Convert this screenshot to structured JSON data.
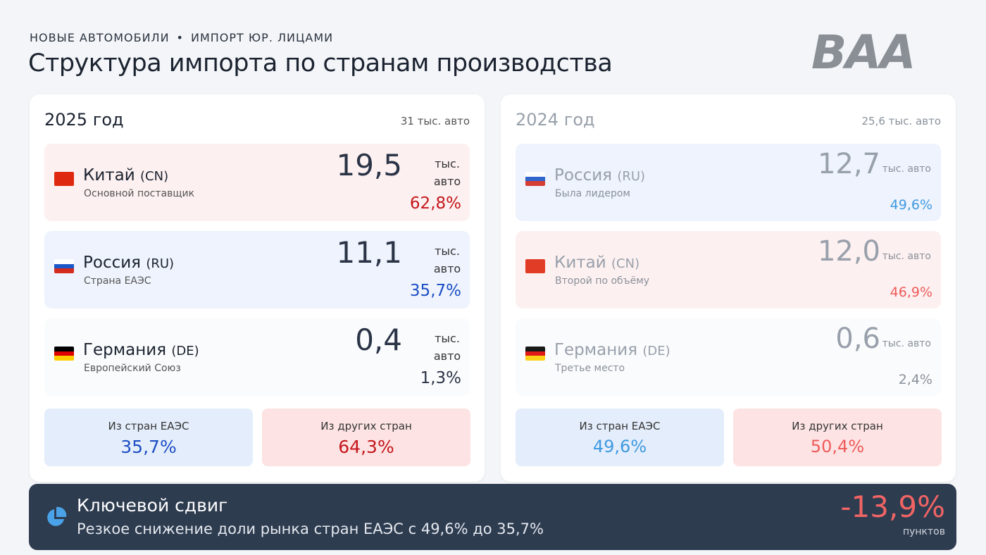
{
  "header": {
    "kicker_left": "НОВЫЕ АВТОМОБИЛИ",
    "kicker_sep": "•",
    "kicker_right": "ИМПОРТ ЮР. ЛИЦАМИ",
    "title": "Структура импорта по странам производства",
    "logo": "BAA"
  },
  "panels": [
    {
      "year": "2025 год",
      "total": "31 тыс. авто",
      "muted": false,
      "rows": [
        {
          "tone": "red",
          "flag_colors": [
            "#de2910"
          ],
          "country": "Китай",
          "code": "(CN)",
          "note": "Основной поставщик",
          "value": "19,5",
          "unit": "тыс. авто",
          "share": "62,8%"
        },
        {
          "tone": "blue",
          "flag_colors": [
            "#ffffff",
            "#1c57c8",
            "#d52b1e"
          ],
          "country": "Россия",
          "code": "(RU)",
          "note": "Страна ЕАЭС",
          "value": "11,1",
          "unit": "тыс. авто",
          "share": "35,7%"
        },
        {
          "tone": "gray",
          "flag_colors": [
            "#000000",
            "#dd0000",
            "#ffce00"
          ],
          "country": "Германия",
          "code": "(DE)",
          "note": "Европейский Союз",
          "value": "0,4",
          "unit": "тыс. авто",
          "share": "1,3%"
        }
      ],
      "summary": [
        {
          "tone": "blue",
          "label": "Из стран ЕАЭС",
          "value": "35,7%"
        },
        {
          "tone": "red",
          "label": "Из других стран",
          "value": "64,3%"
        }
      ]
    },
    {
      "year": "2024 год",
      "total": "25,6 тыс. авто",
      "muted": true,
      "rows": [
        {
          "tone": "blue",
          "flag_colors": [
            "#ffffff",
            "#1c57c8",
            "#d52b1e"
          ],
          "country": "Россия",
          "code": "(RU)",
          "note": "Была лидером",
          "value": "12,7",
          "unit": "тыс. авто",
          "share": "49,6%"
        },
        {
          "tone": "red",
          "flag_colors": [
            "#de2910"
          ],
          "country": "Китай",
          "code": "(CN)",
          "note": "Второй по объёму",
          "value": "12,0",
          "unit": "тыс. авто",
          "share": "46,9%"
        },
        {
          "tone": "gray",
          "flag_colors": [
            "#000000",
            "#dd0000",
            "#ffce00"
          ],
          "country": "Германия",
          "code": "(DE)",
          "note": "Третье место",
          "value": "0,6",
          "unit": "тыс. авто",
          "share": "2,4%"
        }
      ],
      "summary": [
        {
          "tone": "blue",
          "label": "Из стран ЕАЭС",
          "value": "49,6%"
        },
        {
          "tone": "red",
          "label": "Из других стран",
          "value": "50,4%"
        }
      ]
    }
  ],
  "footer": {
    "title": "Ключевой сдвиг",
    "text": "Резкое снижение доли рынка стран ЕАЭС с 49,6% до 35,7%",
    "delta": "-13,9%",
    "delta_unit": "пунктов"
  }
}
